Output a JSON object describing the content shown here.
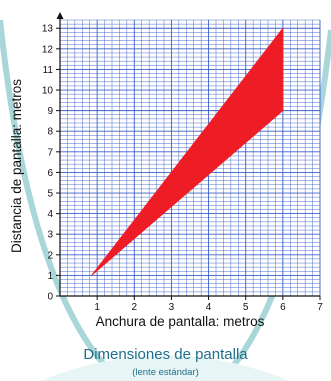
{
  "chart_data": {
    "type": "area",
    "title": "",
    "xlabel": "Anchura de pantalla: metros",
    "ylabel": "Distancia de pantalla: metros",
    "xlim": [
      0,
      7
    ],
    "ylim": [
      0,
      13.4
    ],
    "x_ticks": [
      "1",
      "2",
      "3",
      "4",
      "5",
      "6",
      "7"
    ],
    "y_ticks": [
      "0",
      "1",
      "2",
      "3",
      "4",
      "5",
      "6",
      "7",
      "8",
      "9",
      "10",
      "11",
      "12",
      "13"
    ],
    "grid": true,
    "series": [
      {
        "x": [
          0.85,
          6,
          6,
          6
        ],
        "y_upper": [
          1,
          13,
          13,
          9.4
        ],
        "y_lower": [
          1,
          9,
          9,
          9
        ],
        "color": "#ee1c25"
      }
    ],
    "region_polygon": [
      [
        0.85,
        1
      ],
      [
        6,
        13
      ],
      [
        6,
        9
      ],
      [
        0.85,
        1
      ]
    ]
  },
  "caption": {
    "title": "Dimensiones de pantalla",
    "subtitle": "(lente estándar)"
  },
  "colors": {
    "grid": "#3b5fc8",
    "axis": "#111111",
    "fill": "#ee1c25",
    "decor_arc": "#a9d6d8",
    "caption": "#1f6f8a"
  }
}
